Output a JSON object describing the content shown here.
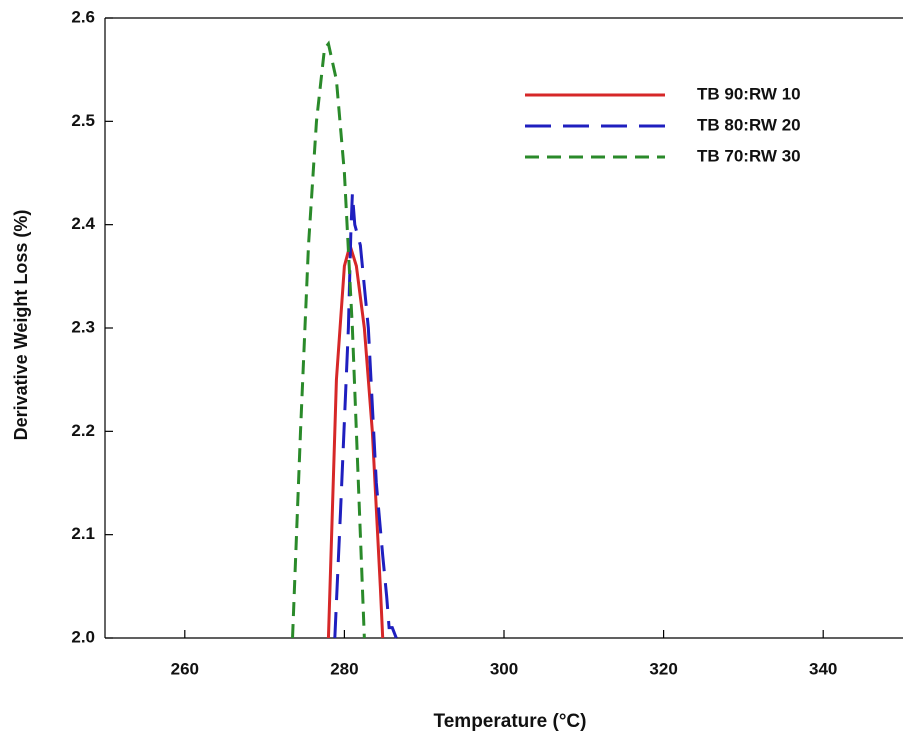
{
  "chart_data": {
    "type": "line",
    "xlabel": "Temperature (°C)",
    "ylabel": "Derivative Weight Loss (%)",
    "xlim": [
      250,
      350
    ],
    "xticks": [
      260,
      280,
      300,
      320,
      340
    ],
    "ylim": [
      2.0,
      2.6
    ],
    "yticks": [
      {
        "value": 2.0,
        "label": "2.0"
      },
      2.1,
      2.2,
      2.3,
      2.4,
      2.5,
      2.6
    ],
    "legend": "upper right",
    "series": [
      {
        "name": "TB 90:RW 10",
        "color": "#d62728",
        "style": "solid",
        "x": [
          278,
          279,
          280,
          280.7,
          281.5,
          282.5,
          283.5,
          284.5,
          284.8
        ],
        "values": [
          2.0,
          2.25,
          2.36,
          2.38,
          2.36,
          2.3,
          2.2,
          2.05,
          2.0
        ]
      },
      {
        "name": "TB 80:RW 20",
        "color": "#1f1fbf",
        "style": "long-dash",
        "x": [
          278.8,
          279.5,
          280.5,
          280.8,
          281,
          281.3,
          282,
          283,
          284,
          284.8,
          285.3,
          285.6,
          286,
          286.5
        ],
        "values": [
          2.0,
          2.12,
          2.3,
          2.39,
          2.43,
          2.4,
          2.38,
          2.3,
          2.15,
          2.08,
          2.04,
          2.01,
          2.01,
          2.0
        ]
      },
      {
        "name": "TB 70:RW 30",
        "color": "#2a8a2a",
        "style": "dash",
        "x": [
          273.5,
          274.5,
          275.5,
          276.5,
          277.5,
          278,
          279,
          280,
          281,
          282,
          282.5
        ],
        "values": [
          2.0,
          2.2,
          2.38,
          2.5,
          2.57,
          2.575,
          2.54,
          2.45,
          2.3,
          2.1,
          2.0
        ]
      }
    ]
  }
}
